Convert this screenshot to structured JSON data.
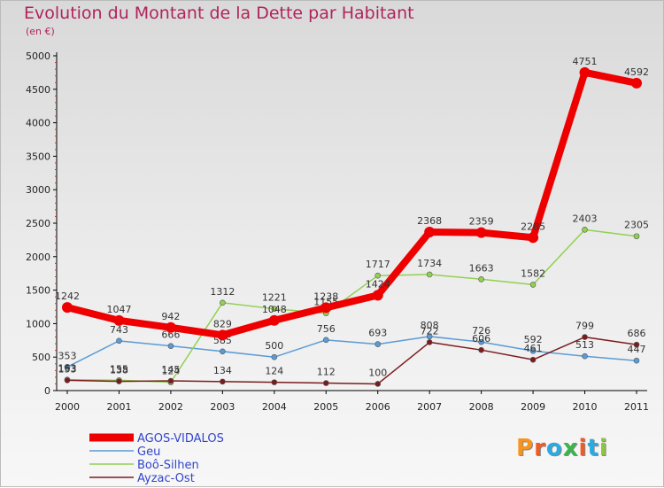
{
  "title": "Evolution du Montant de la Dette par Habitant",
  "subtitle": "(en €)",
  "logo": "Proxiti",
  "colors": {
    "title": "#b0245a",
    "axis": "#000000",
    "grid_tick": "#cc3333"
  },
  "chart_data": {
    "type": "line",
    "x": [
      2000,
      2001,
      2002,
      2003,
      2004,
      2005,
      2006,
      2007,
      2008,
      2009,
      2010,
      2011
    ],
    "ylim": [
      0,
      5000
    ],
    "yticks": [
      0,
      500,
      1000,
      1500,
      2000,
      2500,
      3000,
      3500,
      4000,
      4500,
      5000
    ],
    "grid": false,
    "legend_position": "bottom-left",
    "series": [
      {
        "name": "AGOS-VIDALOS",
        "color": "#ee0000",
        "width": 8,
        "labels": true,
        "values": [
          1242,
          1047,
          942,
          829,
          1048,
          1238,
          1424,
          2368,
          2359,
          2285,
          4751,
          4592
        ]
      },
      {
        "name": "Geu",
        "color": "#5b9bd5",
        "width": 1.5,
        "labels": true,
        "values": [
          353,
          743,
          666,
          585,
          500,
          756,
          693,
          808,
          726,
          592,
          513,
          447
        ]
      },
      {
        "name": "Boô-Silhen",
        "color": "#92d050",
        "width": 1.5,
        "labels": true,
        "values": [
          163,
          155,
          124,
          1312,
          1221,
          1155,
          1717,
          1734,
          1663,
          1582,
          2403,
          2305
        ]
      },
      {
        "name": "Ayzac-Ost",
        "color": "#7b1c1c",
        "width": 1.5,
        "labels": true,
        "values": [
          153,
          138,
          145,
          134,
          124,
          112,
          100,
          722,
          606,
          461,
          799,
          686
        ]
      }
    ]
  }
}
